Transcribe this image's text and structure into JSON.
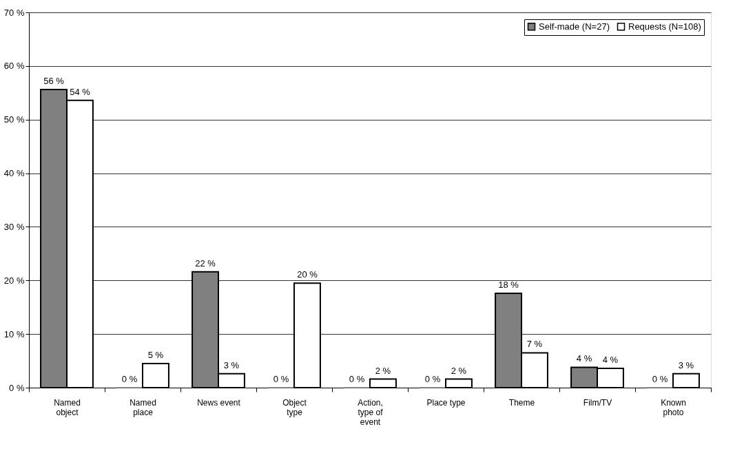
{
  "chart_data": {
    "type": "bar",
    "categories": [
      "Named object",
      "Named place",
      "News event",
      "Object type",
      "Action, type of event",
      "Place type",
      "Theme",
      "Film/TV",
      "Known photo"
    ],
    "series": [
      {
        "name": "Self-made (N=27)",
        "color": "#808080",
        "values": [
          55.6,
          0,
          21.6,
          0,
          0,
          0,
          17.6,
          3.8,
          0
        ],
        "value_labels": [
          "56 %",
          "0 %",
          "22 %",
          "0 %",
          "0 %",
          "0 %",
          "18 %",
          "4 %",
          "0 %"
        ]
      },
      {
        "name": "Requests (N=108)",
        "color": "#ffffff",
        "values": [
          53.6,
          4.5,
          2.6,
          19.5,
          1.6,
          1.6,
          6.5,
          3.6,
          2.6
        ],
        "value_labels": [
          "54 %",
          "5 %",
          "3 %",
          "20 %",
          "2 %",
          "2 %",
          "7 %",
          "4 %",
          "3 %"
        ]
      }
    ],
    "ylim": [
      0,
      70
    ],
    "yticks": [
      {
        "value": 0,
        "label": "0 %"
      },
      {
        "value": 10,
        "label": "10 %"
      },
      {
        "value": 20,
        "label": "20 %"
      },
      {
        "value": 30,
        "label": "30 %"
      },
      {
        "value": 40,
        "label": "40 %"
      },
      {
        "value": 50,
        "label": "50 %"
      },
      {
        "value": 60,
        "label": "60 %"
      },
      {
        "value": 70,
        "label": "70 %"
      }
    ],
    "grid": "y",
    "legend": "top right"
  }
}
